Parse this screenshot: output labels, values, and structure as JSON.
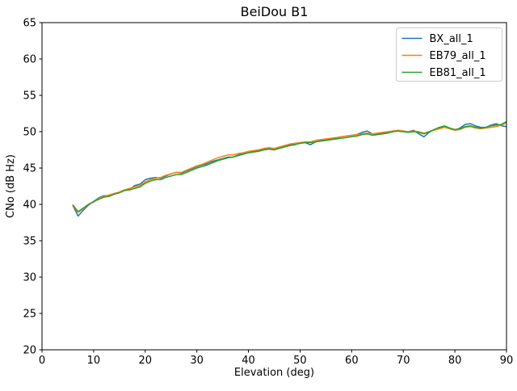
{
  "chart_data": {
    "type": "line",
    "title": "BeiDou B1",
    "xlabel": "Elevation (deg)",
    "ylabel": "CNo (dB Hz)",
    "xlim": [
      0,
      90
    ],
    "ylim": [
      20,
      65
    ],
    "x_ticks": [
      0,
      10,
      20,
      30,
      40,
      50,
      60,
      70,
      80,
      90
    ],
    "y_ticks": [
      20,
      25,
      30,
      35,
      40,
      45,
      50,
      55,
      60,
      65
    ],
    "grid": false,
    "legend_position": "upper right",
    "line_width": 1.5,
    "x": [
      6,
      7,
      8,
      9,
      10,
      11,
      12,
      13,
      14,
      15,
      16,
      17,
      18,
      19,
      20,
      21,
      22,
      23,
      24,
      25,
      26,
      27,
      28,
      29,
      30,
      31,
      32,
      33,
      34,
      35,
      36,
      37,
      38,
      39,
      40,
      41,
      42,
      43,
      44,
      45,
      46,
      47,
      48,
      49,
      50,
      51,
      52,
      53,
      54,
      55,
      56,
      57,
      58,
      59,
      60,
      61,
      62,
      63,
      64,
      65,
      66,
      67,
      68,
      69,
      70,
      71,
      72,
      73,
      74,
      75,
      76,
      77,
      78,
      79,
      80,
      81,
      82,
      83,
      84,
      85,
      86,
      87,
      88,
      89,
      90
    ],
    "series": [
      {
        "name": "BX_all_1",
        "color": "#1f77b4",
        "values": [
          39.8,
          38.4,
          39.2,
          39.9,
          40.4,
          40.9,
          41.2,
          41.2,
          41.5,
          41.6,
          42.0,
          42.1,
          42.6,
          42.8,
          43.4,
          43.6,
          43.7,
          43.6,
          43.9,
          44.2,
          44.4,
          44.3,
          44.6,
          44.9,
          45.2,
          45.4,
          45.6,
          45.9,
          46.1,
          46.3,
          46.5,
          46.5,
          46.8,
          47.0,
          47.1,
          47.3,
          47.4,
          47.6,
          47.7,
          47.5,
          47.8,
          48.0,
          48.2,
          48.3,
          48.4,
          48.5,
          48.2,
          48.6,
          48.8,
          48.9,
          49.0,
          49.1,
          49.3,
          49.4,
          49.5,
          49.6,
          49.9,
          50.1,
          49.7,
          49.7,
          49.8,
          49.9,
          50.0,
          50.1,
          50.0,
          50.0,
          50.2,
          49.7,
          49.3,
          49.9,
          50.3,
          50.5,
          50.7,
          50.4,
          50.2,
          50.5,
          51.0,
          51.1,
          50.8,
          50.6,
          50.6,
          50.9,
          51.1,
          50.8,
          50.7
        ]
      },
      {
        "name": "EB79_all_1",
        "color": "#ff7f0e",
        "values": [
          39.8,
          38.9,
          39.4,
          40.0,
          40.3,
          40.8,
          41.1,
          41.3,
          41.5,
          41.7,
          42.0,
          42.2,
          42.4,
          42.6,
          43.1,
          43.4,
          43.6,
          43.7,
          44.0,
          44.2,
          44.4,
          44.4,
          44.7,
          45.0,
          45.3,
          45.5,
          45.8,
          46.1,
          46.4,
          46.6,
          46.8,
          46.8,
          47.0,
          47.1,
          47.3,
          47.4,
          47.5,
          47.7,
          47.8,
          47.7,
          47.9,
          48.1,
          48.3,
          48.4,
          48.5,
          48.6,
          48.6,
          48.8,
          48.9,
          49.0,
          49.1,
          49.2,
          49.3,
          49.4,
          49.5,
          49.6,
          49.7,
          49.8,
          49.7,
          49.8,
          49.9,
          50.0,
          50.1,
          50.2,
          50.1,
          50.0,
          50.1,
          50.0,
          49.8,
          50.0,
          50.2,
          50.4,
          50.6,
          50.4,
          50.2,
          50.3,
          50.6,
          50.7,
          50.5,
          50.4,
          50.5,
          50.6,
          50.7,
          50.9,
          51.2
        ]
      },
      {
        "name": "EB81_all_1",
        "color": "#2ca02c",
        "values": [
          39.9,
          39.0,
          39.5,
          40.0,
          40.4,
          40.7,
          41.0,
          41.1,
          41.4,
          41.6,
          41.9,
          42.0,
          42.2,
          42.4,
          42.9,
          43.2,
          43.4,
          43.4,
          43.7,
          43.9,
          44.1,
          44.1,
          44.4,
          44.7,
          45.0,
          45.2,
          45.4,
          45.7,
          46.0,
          46.2,
          46.4,
          46.5,
          46.7,
          46.9,
          47.1,
          47.2,
          47.3,
          47.5,
          47.6,
          47.5,
          47.7,
          47.9,
          48.1,
          48.2,
          48.4,
          48.5,
          48.5,
          48.6,
          48.7,
          48.8,
          48.9,
          49.0,
          49.1,
          49.2,
          49.3,
          49.4,
          49.6,
          49.7,
          49.5,
          49.6,
          49.7,
          49.8,
          50.0,
          50.1,
          50.0,
          49.9,
          50.0,
          49.9,
          49.7,
          50.0,
          50.3,
          50.6,
          50.8,
          50.5,
          50.3,
          50.4,
          50.7,
          50.8,
          50.6,
          50.5,
          50.6,
          50.8,
          50.9,
          51.0,
          51.4
        ]
      }
    ],
    "colors": {
      "spine": "#000000",
      "background": "#ffffff",
      "legend_border": "#cccccc"
    }
  }
}
